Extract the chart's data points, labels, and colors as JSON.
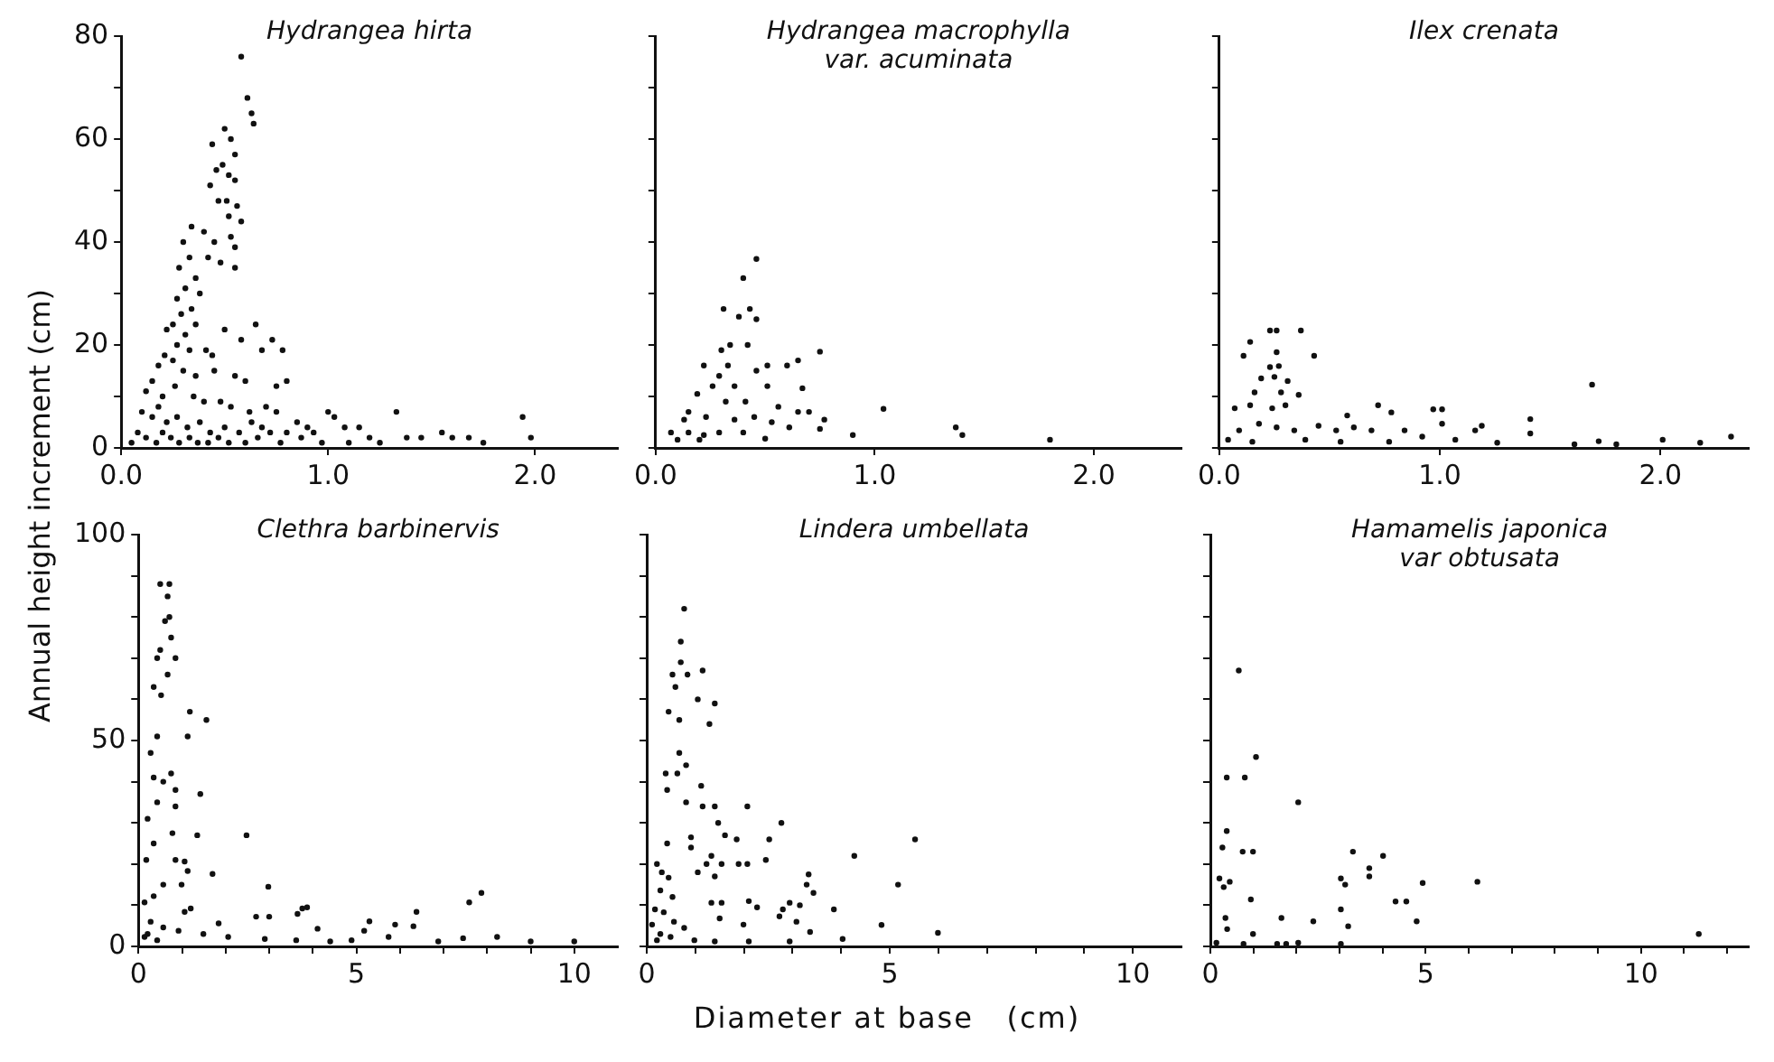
{
  "chart_data": [
    {
      "type": "scatter",
      "title": "Hydrangea hirta",
      "ylabel": "Annual height increment (cm)",
      "marker": "circle",
      "xlim": [
        0,
        2.4
      ],
      "ylim": [
        0,
        80
      ],
      "xticks": [
        {
          "value": 0,
          "label": "0.0"
        },
        {
          "value": 1,
          "label": "1.0"
        },
        {
          "value": 2,
          "label": "2.0"
        }
      ],
      "yticks": [
        0,
        {
          "value": 10,
          "label": null
        },
        20,
        {
          "value": 30,
          "label": null
        },
        40,
        {
          "value": 50,
          "label": null
        },
        60,
        {
          "value": 70,
          "label": null
        },
        80
      ],
      "series": [
        {
          "color": "#111111",
          "x": [
            0.58,
            0.61,
            0.63,
            0.64,
            0.5,
            0.53,
            0.44,
            0.55,
            0.49,
            0.46,
            0.52,
            0.55,
            0.43,
            0.47,
            0.51,
            0.56,
            0.58,
            0.52,
            0.4,
            0.45,
            0.53,
            0.55,
            0.42,
            0.48,
            0.55,
            0.34,
            0.3,
            0.33,
            0.28,
            0.36,
            0.31,
            0.38,
            0.27,
            0.34,
            0.29,
            0.36,
            0.25,
            0.31,
            0.22,
            0.27,
            0.33,
            0.21,
            0.25,
            0.18,
            0.3,
            0.36,
            0.41,
            0.44,
            0.5,
            0.58,
            0.65,
            0.68,
            0.73,
            0.78,
            0.75,
            0.8,
            0.45,
            0.55,
            0.6,
            0.15,
            0.12,
            0.2,
            0.26,
            0.35,
            0.4,
            0.48,
            0.53,
            0.62,
            0.7,
            0.75,
            0.85,
            0.9,
            1.0,
            1.03,
            1.08,
            1.15,
            1.2,
            1.33,
            1.38,
            1.45,
            1.55,
            1.6,
            1.75,
            1.94,
            1.98,
            0.1,
            0.15,
            0.18,
            0.22,
            0.27,
            0.32,
            0.38,
            0.43,
            0.5,
            0.57,
            0.63,
            0.68,
            0.72,
            0.8,
            0.87,
            0.93,
            0.97,
            0.05,
            0.08,
            0.12,
            0.17,
            0.2,
            0.24,
            0.28,
            0.33,
            0.37,
            0.42,
            0.47,
            0.52,
            0.6,
            0.66,
            0.77,
            1.1,
            1.25,
            1.68
          ],
          "values": [
            76,
            68,
            65,
            63,
            62,
            60,
            59,
            57,
            55,
            54,
            53,
            52,
            51,
            48,
            48,
            47,
            44,
            45,
            42,
            40,
            41,
            39,
            37,
            36,
            35,
            43,
            40,
            37,
            35,
            33,
            31,
            30,
            29,
            27,
            26,
            24,
            24,
            22,
            23,
            20,
            19,
            18,
            17,
            16,
            15,
            14,
            19,
            18,
            23,
            21,
            24,
            19,
            21,
            19,
            12,
            13,
            15,
            14,
            13,
            13,
            11,
            10,
            12,
            10,
            9,
            9,
            8,
            7,
            8,
            7,
            5,
            4,
            7,
            6,
            4,
            4,
            2,
            7,
            2,
            2,
            3,
            2,
            1,
            6,
            2,
            7,
            6,
            8,
            5,
            6,
            4,
            5,
            3,
            4,
            3,
            5,
            4,
            3,
            3,
            2,
            3,
            1,
            1,
            3,
            2,
            1,
            3,
            2,
            1,
            2,
            1,
            1,
            2,
            1,
            1,
            2,
            1,
            1,
            1,
            2
          ]
        }
      ]
    },
    {
      "type": "scatter",
      "title": "Hydrangea macrophylla\nvar. acuminata",
      "marker": "circle",
      "tick_labels": "x",
      "xlim": [
        0,
        2.4
      ],
      "ylim": [
        0,
        80
      ],
      "xticks": [
        {
          "value": 0,
          "label": "0.0"
        },
        {
          "value": 1,
          "label": "1.0"
        },
        {
          "value": 2,
          "label": "2.0"
        }
      ],
      "yticks": [
        {
          "value": 0,
          "label": null
        },
        {
          "value": 10,
          "label": null
        },
        {
          "value": 20,
          "label": null
        },
        {
          "value": 30,
          "label": null
        },
        {
          "value": 40,
          "label": null
        },
        {
          "value": 50,
          "label": null
        },
        {
          "value": 60,
          "label": null
        },
        {
          "value": 70,
          "label": null
        },
        {
          "value": 80,
          "label": null
        }
      ],
      "series": [
        {
          "color": "#111111",
          "x": [
            0.46,
            0.4,
            0.31,
            0.43,
            0.38,
            0.46,
            0.3,
            0.34,
            0.42,
            0.75,
            0.65,
            0.6,
            0.51,
            0.22,
            0.33,
            0.46,
            0.29,
            0.36,
            0.51,
            0.67,
            0.19,
            0.26,
            0.32,
            0.41,
            0.56,
            0.65,
            0.7,
            0.77,
            1.04,
            0.15,
            0.13,
            0.23,
            0.36,
            0.45,
            0.53,
            0.61,
            0.75,
            0.9,
            0.07,
            0.15,
            0.22,
            0.29,
            0.4,
            0.1,
            1.37,
            1.4,
            1.8,
            0.2,
            0.5
          ],
          "values": [
            36.7,
            33,
            27,
            27,
            25.5,
            25,
            19,
            20,
            20,
            18.7,
            17,
            16,
            16,
            16,
            16,
            15,
            14,
            12,
            12,
            11.6,
            10.5,
            12,
            9,
            9,
            8,
            7,
            7,
            5.5,
            7.6,
            7,
            5.5,
            6,
            5.5,
            6,
            5,
            4,
            3.7,
            2.5,
            3,
            3,
            2.5,
            3,
            3,
            1.6,
            4,
            2.5,
            1.6,
            1.6,
            1.8
          ]
        }
      ]
    },
    {
      "type": "scatter",
      "title": "Ilex crenata",
      "marker": "circle",
      "tick_labels": "x",
      "xlim": [
        0,
        2.4
      ],
      "ylim": [
        0,
        80
      ],
      "xticks": [
        {
          "value": 0,
          "label": "0.0"
        },
        {
          "value": 1,
          "label": "1.0"
        },
        {
          "value": 2,
          "label": "2.0"
        }
      ],
      "yticks": [
        {
          "value": 0,
          "label": null
        },
        {
          "value": 10,
          "label": null
        },
        {
          "value": 20,
          "label": null
        },
        {
          "value": 30,
          "label": null
        },
        {
          "value": 40,
          "label": null
        },
        {
          "value": 50,
          "label": null
        },
        {
          "value": 60,
          "label": null
        },
        {
          "value": 70,
          "label": null
        },
        {
          "value": 80,
          "label": null
        }
      ],
      "series": [
        {
          "color": "#111111",
          "x": [
            0.37,
            0.23,
            0.26,
            0.14,
            0.11,
            0.43,
            0.26,
            0.23,
            0.27,
            0.19,
            0.31,
            0.25,
            0.36,
            0.16,
            0.28,
            0.07,
            0.14,
            0.24,
            0.3,
            1.69,
            0.72,
            0.78,
            0.97,
            1.01,
            0.58,
            1.41,
            1.01,
            1.19,
            1.16,
            1.41,
            2.32,
            1.72,
            0.09,
            0.18,
            0.26,
            0.34,
            0.45,
            0.53,
            0.61,
            0.69,
            0.84,
            0.92,
            1.07,
            1.26,
            1.61,
            1.8,
            2.01,
            2.18,
            0.04,
            0.15,
            0.39,
            0.55,
            0.77
          ],
          "values": [
            22.8,
            22.8,
            22.8,
            20.6,
            17.9,
            17.9,
            18.6,
            15.7,
            15.9,
            13.5,
            13,
            13.8,
            10.3,
            10.8,
            10.8,
            7.7,
            8.3,
            7.7,
            8.3,
            12.3,
            8.3,
            6.9,
            7.5,
            7.5,
            6.3,
            5.6,
            4.7,
            4.3,
            3.4,
            2.8,
            2.2,
            1.3,
            3.4,
            4.7,
            4,
            3.4,
            4.3,
            3.4,
            4,
            3.4,
            3.4,
            2.2,
            1.6,
            1,
            0.7,
            0.7,
            1.6,
            1,
            1.6,
            1.2,
            1.6,
            1.2,
            1.2
          ]
        }
      ]
    },
    {
      "type": "scatter",
      "title": "Clethra barbinervis",
      "marker": "circle",
      "xlim": [
        0,
        11
      ],
      "ylim": [
        0,
        100
      ],
      "xticks": [
        0,
        {
          "value": 1,
          "label": null
        },
        {
          "value": 2,
          "label": null
        },
        {
          "value": 3,
          "label": null
        },
        {
          "value": 4,
          "label": null
        },
        5,
        {
          "value": 6,
          "label": null
        },
        {
          "value": 7,
          "label": null
        },
        {
          "value": 8,
          "label": null
        },
        {
          "value": 9,
          "label": null
        },
        10
      ],
      "yticks": [
        0,
        {
          "value": 10,
          "label": null
        },
        {
          "value": 20,
          "label": null
        },
        {
          "value": 30,
          "label": null
        },
        {
          "value": 40,
          "label": null
        },
        50,
        {
          "value": 60,
          "label": null
        },
        {
          "value": 70,
          "label": null
        },
        {
          "value": 80,
          "label": null
        },
        {
          "value": 90,
          "label": null
        },
        100
      ],
      "series": [
        {
          "color": "#111111",
          "x": [
            0.71,
            0.5,
            0.67,
            0.71,
            0.61,
            0.75,
            0.5,
            0.85,
            0.43,
            0.67,
            0.35,
            0.52,
            1.18,
            1.56,
            1.13,
            0.43,
            0.28,
            0.75,
            0.35,
            0.57,
            0.85,
            1.42,
            0.43,
            0.85,
            0.21,
            1.35,
            2.48,
            0.78,
            0.35,
            0.18,
            0.85,
            1.06,
            1.13,
            1.7,
            0.57,
            0.99,
            2.98,
            1.06,
            1.2,
            3.76,
            3.87,
            2.7,
            3.0,
            3.65,
            6.38,
            7.59,
            7.87,
            5.3,
            5.89,
            6.31,
            1.84,
            4.11,
            5.18,
            5.74,
            7.45,
            8.23,
            9.0,
            0.14,
            0.35,
            0.28,
            0.57,
            0.92,
            1.49,
            2.06,
            2.9,
            3.62,
            4.4,
            4.89,
            6.88,
            10.0,
            0.21,
            0.14,
            0.43
          ],
          "values": [
            88,
            88,
            85,
            80,
            79,
            75,
            72,
            70,
            70,
            66,
            63,
            61,
            57,
            55,
            51,
            51,
            47,
            42,
            41,
            40,
            38,
            37,
            35,
            34,
            31,
            27,
            27,
            27.5,
            25,
            21,
            21,
            20.6,
            18.3,
            17.6,
            15,
            15,
            14.5,
            8.4,
            9.2,
            9.2,
            9.5,
            7.2,
            7.2,
            7.9,
            8.4,
            10.7,
            13,
            6.1,
            5.3,
            4.9,
            5.6,
            4.3,
            3.8,
            2.3,
            2,
            2.3,
            1.2,
            10.7,
            12.2,
            6,
            4.6,
            3.8,
            3,
            2.3,
            1.8,
            1.5,
            1.2,
            1.5,
            1.2,
            1.2,
            3,
            2.3,
            1.5
          ]
        }
      ]
    },
    {
      "type": "scatter",
      "title": "Lindera umbellata",
      "xlabel": "Diameter at base   (cm)",
      "marker": "circle",
      "tick_labels": "x",
      "xlim": [
        0,
        11
      ],
      "ylim": [
        0,
        100
      ],
      "xticks": [
        0,
        {
          "value": 1,
          "label": null
        },
        {
          "value": 2,
          "label": null
        },
        {
          "value": 3,
          "label": null
        },
        {
          "value": 4,
          "label": null
        },
        5,
        {
          "value": 6,
          "label": null
        },
        {
          "value": 7,
          "label": null
        },
        {
          "value": 8,
          "label": null
        },
        {
          "value": 9,
          "label": null
        },
        10
      ],
      "yticks": [
        {
          "value": 0,
          "label": null
        },
        {
          "value": 10,
          "label": null
        },
        {
          "value": 20,
          "label": null
        },
        {
          "value": 30,
          "label": null
        },
        {
          "value": 40,
          "label": null
        },
        {
          "value": 50,
          "label": null
        },
        {
          "value": 60,
          "label": null
        },
        {
          "value": 70,
          "label": null
        },
        {
          "value": 80,
          "label": null
        },
        {
          "value": 90,
          "label": null
        },
        {
          "value": 100,
          "label": null
        }
      ],
      "series": [
        {
          "color": "#111111",
          "x": [
            0.77,
            0.7,
            0.7,
            1.15,
            0.53,
            0.84,
            0.59,
            1.05,
            1.4,
            1.29,
            0.45,
            0.67,
            0.67,
            0.81,
            0.39,
            0.63,
            0.42,
            1.12,
            0.81,
            1.15,
            1.4,
            2.07,
            2.77,
            1.47,
            1.61,
            1.85,
            2.52,
            5.52,
            0.42,
            0.91,
            0.91,
            4.27,
            2.45,
            1.33,
            1.89,
            2.07,
            1.23,
            1.54,
            1.05,
            1.4,
            3.33,
            3.29,
            5.17,
            3.43,
            2.1,
            2.27,
            1.33,
            1.54,
            1.5,
            3.15,
            2.94,
            2.8,
            3.85,
            2.73,
            3.08,
            1.99,
            4.83,
            5.99,
            3.36,
            4.03,
            0.21,
            0.31,
            0.45,
            0.28,
            0.53,
            0.17,
            0.35,
            0.56,
            0.11,
            0.77,
            0.28,
            0.98,
            1.4,
            2.1,
            2.94,
            0.49,
            0.21
          ],
          "values": [
            82,
            74,
            69,
            67,
            66,
            66,
            63,
            60,
            59,
            54,
            57,
            55,
            47,
            44,
            42,
            42,
            38,
            39,
            35,
            34,
            34,
            34,
            30,
            30,
            27,
            26,
            26,
            26,
            25,
            26.5,
            24,
            22,
            21,
            22,
            20,
            20,
            20,
            20,
            18,
            17,
            17.5,
            15,
            15,
            13,
            11,
            9.5,
            10.6,
            10.6,
            6.8,
            10,
            10.6,
            9,
            9,
            7.3,
            6,
            5.3,
            5.2,
            3.3,
            3.5,
            1.8,
            20,
            18,
            16.7,
            13.6,
            12,
            9,
            8.3,
            6,
            5.3,
            4.5,
            3,
            1.5,
            1.2,
            1.2,
            1.2,
            2.3,
            1.5
          ]
        }
      ]
    },
    {
      "type": "scatter",
      "title": "Hamamelis japonica\nvar obtusata",
      "marker": "circle",
      "tick_labels": "x",
      "xlim": [
        0,
        12.5
      ],
      "ylim": [
        0,
        100
      ],
      "xticks": [
        0,
        {
          "value": 1,
          "label": null
        },
        {
          "value": 2,
          "label": null
        },
        {
          "value": 3,
          "label": null
        },
        {
          "value": 4,
          "label": null
        },
        5,
        {
          "value": 6,
          "label": null
        },
        {
          "value": 7,
          "label": null
        },
        {
          "value": 8,
          "label": null
        },
        {
          "value": 9,
          "label": null
        },
        10,
        {
          "value": 11,
          "label": null
        },
        {
          "value": 12,
          "label": null
        }
      ],
      "yticks": [
        {
          "value": 0,
          "label": null
        },
        {
          "value": 10,
          "label": null
        },
        {
          "value": 20,
          "label": null
        },
        {
          "value": 30,
          "label": null
        },
        {
          "value": 40,
          "label": null
        },
        {
          "value": 50,
          "label": null
        },
        {
          "value": 60,
          "label": null
        },
        {
          "value": 70,
          "label": null
        },
        {
          "value": 80,
          "label": null
        },
        {
          "value": 90,
          "label": null
        },
        {
          "value": 100,
          "label": null
        }
      ],
      "series": [
        {
          "color": "#111111",
          "x": [
            0.66,
            1.06,
            0.8,
            0.38,
            2.04,
            0.38,
            0.28,
            0.75,
            0.99,
            3.31,
            4.01,
            3.69,
            3.69,
            3.03,
            3.13,
            4.93,
            6.2,
            0.21,
            0.45,
            0.31,
            0.94,
            4.3,
            4.55,
            3.03,
            0.35,
            1.65,
            2.39,
            4.79,
            0.39,
            3.2,
            0.99,
            11.34,
            1.55,
            1.76,
            2.04,
            3.03,
            0.14,
            0.77
          ],
          "values": [
            67,
            46,
            41,
            41,
            35,
            28,
            24,
            23,
            23,
            23,
            22,
            19,
            17,
            16.5,
            15,
            15.4,
            15.7,
            16.5,
            15.7,
            14.4,
            11.4,
            10.9,
            10.9,
            9,
            6.9,
            6.9,
            6.1,
            6.1,
            4.2,
            4.9,
            3,
            3,
            0.6,
            0.6,
            0.9,
            0.6,
            0.9,
            0.6
          ]
        }
      ]
    }
  ]
}
